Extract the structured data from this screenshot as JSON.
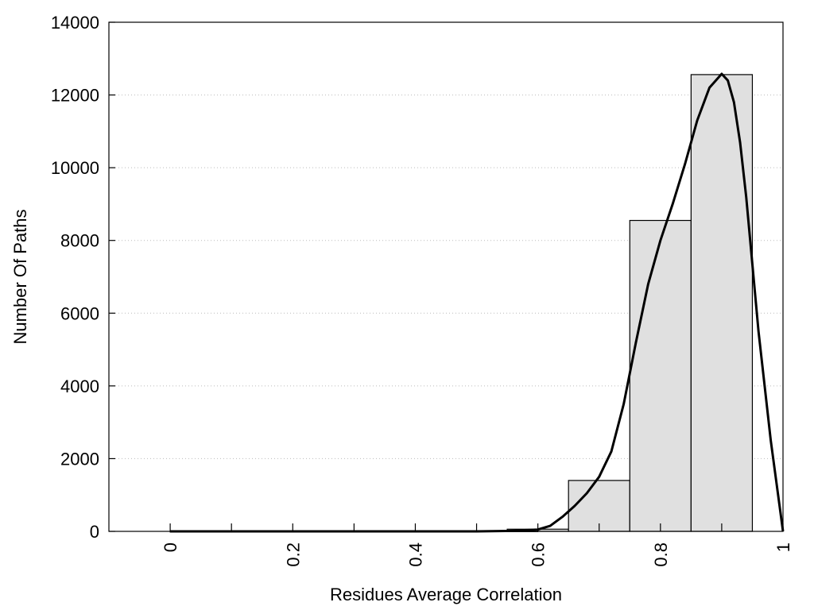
{
  "chart_data": {
    "type": "bar",
    "title": "",
    "xlabel": "Residues Average Correlation",
    "ylabel": "Number Of Paths",
    "xlim": [
      -0.1,
      1.0
    ],
    "ylim": [
      0,
      14000
    ],
    "grid": true,
    "x_ticks": [
      "0",
      "0.2",
      "0.4",
      "0.6",
      "0.8",
      "1"
    ],
    "y_ticks": [
      "0",
      "2000",
      "4000",
      "6000",
      "8000",
      "10000",
      "12000",
      "14000"
    ],
    "bars": [
      {
        "x0": 0.0,
        "x1": 0.1,
        "value": 0
      },
      {
        "x0": 0.1,
        "x1": 0.2,
        "value": 0
      },
      {
        "x0": 0.2,
        "x1": 0.3,
        "value": 0
      },
      {
        "x0": 0.3,
        "x1": 0.4,
        "value": 0
      },
      {
        "x0": 0.4,
        "x1": 0.5,
        "value": 0
      },
      {
        "x0": 0.5,
        "x1": 0.6,
        "value": 10
      },
      {
        "x0": 0.55,
        "x1": 0.65,
        "value": 60
      },
      {
        "x0": 0.65,
        "x1": 0.75,
        "value": 1400
      },
      {
        "x0": 0.75,
        "x1": 0.85,
        "value": 8550
      },
      {
        "x0": 0.85,
        "x1": 0.95,
        "value": 12560
      }
    ],
    "curve": {
      "x": [
        0.0,
        0.5,
        0.55,
        0.6,
        0.62,
        0.64,
        0.66,
        0.68,
        0.7,
        0.72,
        0.74,
        0.76,
        0.78,
        0.8,
        0.82,
        0.84,
        0.86,
        0.88,
        0.9,
        0.91,
        0.92,
        0.93,
        0.94,
        0.96,
        0.98,
        1.0
      ],
      "y": [
        0,
        0,
        10,
        50,
        150,
        400,
        700,
        1050,
        1500,
        2200,
        3500,
        5200,
        6800,
        8000,
        9000,
        10100,
        11300,
        12200,
        12580,
        12400,
        11800,
        10700,
        9200,
        5500,
        2500,
        0
      ]
    },
    "colors": {
      "bar_fill": "#e0e0e0",
      "bar_stroke": "#000000",
      "curve": "#000000",
      "grid": "#bbbbbb"
    }
  }
}
